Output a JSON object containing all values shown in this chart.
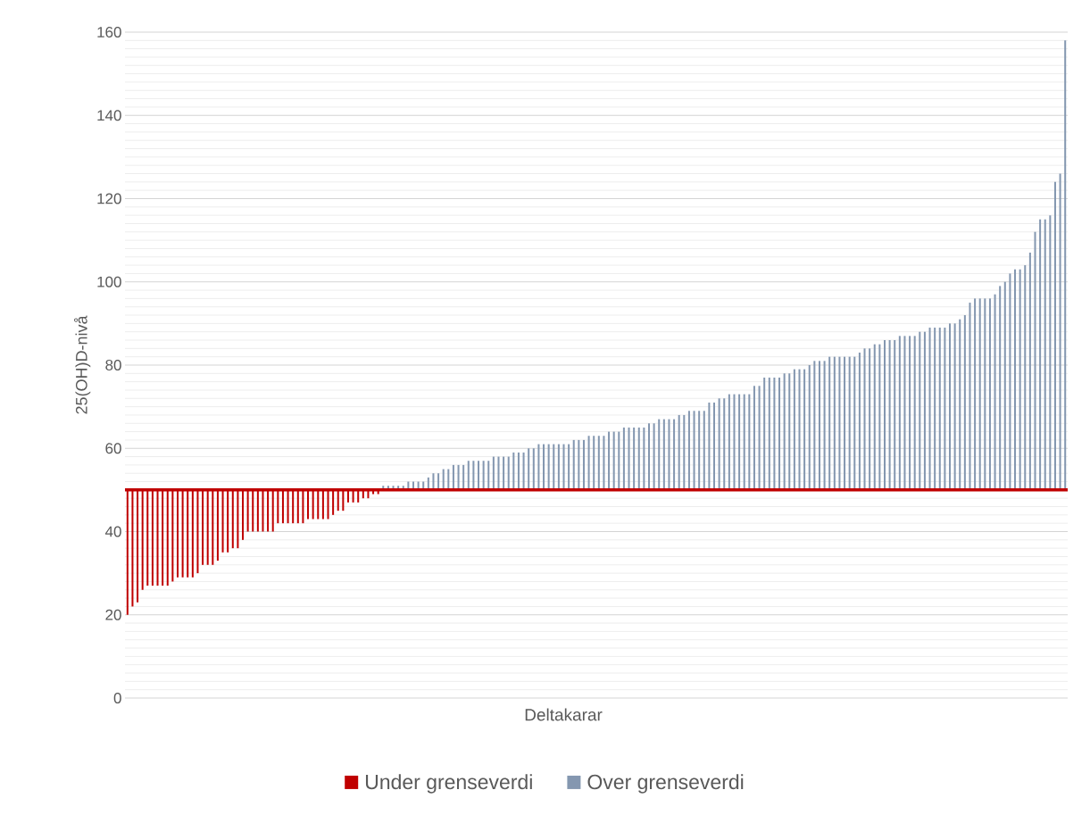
{
  "chart_data": {
    "type": "bar",
    "xlabel": "Deltakarar",
    "ylabel": "25(OH)D-nivå",
    "categories": [
      null,
      null,
      null,
      null,
      null,
      null,
      null,
      null,
      null,
      null,
      null,
      null,
      null,
      null,
      null,
      null,
      null,
      null,
      null,
      null,
      null,
      null,
      null,
      null,
      null,
      null,
      null,
      null,
      null,
      null,
      null,
      null,
      null,
      null,
      null,
      null,
      null,
      null,
      null,
      null,
      null,
      null,
      null,
      null,
      null,
      null,
      null,
      null,
      null,
      null,
      null,
      null,
      null,
      null,
      null,
      null,
      null,
      null,
      null,
      null,
      null,
      null,
      null,
      null,
      null,
      null,
      null,
      null,
      null,
      null,
      null,
      null,
      null,
      null,
      null,
      null,
      null,
      null,
      null,
      null,
      null,
      null,
      null,
      null,
      null,
      null,
      null,
      null,
      null,
      null,
      null,
      null,
      null,
      null,
      null,
      null,
      null,
      null,
      null,
      null,
      null,
      null,
      null,
      null,
      null,
      null,
      null,
      null,
      null,
      null,
      null,
      null,
      null,
      null,
      null,
      null,
      null,
      null,
      null,
      null,
      null,
      null,
      null,
      null,
      null,
      null,
      null,
      null,
      null,
      null,
      null,
      null,
      null,
      null,
      null,
      null,
      null,
      null,
      null,
      null,
      null,
      null,
      null,
      null,
      null,
      null,
      null,
      null,
      null,
      null,
      null,
      null,
      null,
      null,
      null,
      null,
      null,
      null,
      null,
      null,
      null,
      null,
      null,
      null,
      null,
      null,
      null,
      null,
      null,
      null,
      null,
      null,
      null,
      null,
      null,
      null,
      null,
      null,
      null,
      null,
      null,
      null,
      null,
      null,
      null,
      null,
      null,
      null
    ],
    "series": [
      {
        "name": "Under grenseverdi",
        "color": "#c00000",
        "base": [
          50,
          50,
          50,
          50,
          50,
          50,
          50,
          50,
          50,
          50,
          50,
          50,
          50,
          50,
          50,
          50,
          50,
          50,
          50,
          50,
          50,
          50,
          50,
          50,
          50,
          50,
          50,
          50,
          50,
          50,
          50,
          50,
          50,
          50,
          50,
          50,
          50,
          50,
          50,
          50,
          50,
          50,
          50,
          50,
          50,
          50,
          50,
          50,
          50,
          50,
          50,
          null,
          null,
          null,
          null,
          null,
          null,
          null,
          null,
          null,
          null,
          null,
          null,
          null,
          null,
          null,
          null,
          null,
          null,
          null,
          null,
          null,
          null,
          null,
          null,
          null,
          null,
          null,
          null,
          null,
          null,
          null,
          null,
          null,
          null,
          null,
          null,
          null,
          null,
          null,
          null,
          null,
          null,
          null,
          null,
          null,
          null,
          null,
          null,
          null,
          null,
          null,
          null,
          null,
          null,
          null,
          null,
          null,
          null,
          null,
          null,
          null,
          null,
          null,
          null,
          null,
          null,
          null,
          null,
          null,
          null,
          null,
          null,
          null,
          null,
          null,
          null,
          null,
          null,
          null,
          null,
          null,
          null,
          null,
          null,
          null,
          null,
          null,
          null,
          null,
          null,
          null,
          null,
          null,
          null,
          null,
          null,
          null,
          null,
          null,
          null,
          null,
          null,
          null,
          null,
          null,
          null,
          null,
          null,
          null,
          null,
          null,
          null,
          null,
          null,
          null,
          null,
          null,
          null,
          null,
          null,
          null,
          null,
          null,
          null,
          null,
          null,
          null,
          null,
          null,
          null,
          null,
          null,
          null,
          null,
          null,
          null,
          null
        ],
        "values": [
          -30,
          -28,
          -27,
          -24,
          -23,
          -23,
          -23,
          -23,
          -23,
          -22,
          -21,
          -21,
          -21,
          -21,
          -20,
          -18,
          -18,
          -18,
          -17,
          -15,
          -15,
          -14,
          -14,
          -12,
          -10,
          -10,
          -10,
          -10,
          -10,
          -10,
          -8,
          -8,
          -8,
          -8,
          -8,
          -8,
          -7,
          -7,
          -7,
          -7,
          -7,
          -6,
          -5,
          -5,
          -3,
          -3,
          -3,
          -2,
          -2,
          -1,
          -1,
          null,
          null,
          null,
          null,
          null,
          null,
          null,
          null,
          null,
          null,
          null,
          null,
          null,
          null,
          null,
          null,
          null,
          null,
          null,
          null,
          null,
          null,
          null,
          null,
          null,
          null,
          null,
          null,
          null,
          null,
          null,
          null,
          null,
          null,
          null,
          null,
          null,
          null,
          null,
          null,
          null,
          null,
          null,
          null,
          null,
          null,
          null,
          null,
          null,
          null,
          null,
          null,
          null,
          null,
          null,
          null,
          null,
          null,
          null,
          null,
          null,
          null,
          null,
          null,
          null,
          null,
          null,
          null,
          null,
          null,
          null,
          null,
          null,
          null,
          null,
          null,
          null,
          null,
          null,
          null,
          null,
          null,
          null,
          null,
          null,
          null,
          null,
          null,
          null,
          null,
          null,
          null,
          null,
          null,
          null,
          null,
          null,
          null,
          null,
          null,
          null,
          null,
          null,
          null,
          null,
          null,
          null,
          null,
          null,
          null,
          null,
          null,
          null,
          null,
          null,
          null,
          null,
          null,
          null,
          null,
          null,
          null,
          null,
          null,
          null,
          null,
          null,
          null,
          null,
          null,
          null,
          null,
          null,
          null,
          null,
          null,
          null
        ]
      },
      {
        "name": "Over grenseverdi",
        "color": "#8497b0",
        "base": [
          null,
          null,
          null,
          null,
          null,
          null,
          null,
          null,
          null,
          null,
          null,
          null,
          null,
          null,
          null,
          null,
          null,
          null,
          null,
          null,
          null,
          null,
          null,
          null,
          null,
          null,
          null,
          null,
          null,
          null,
          null,
          null,
          null,
          null,
          null,
          null,
          null,
          null,
          null,
          null,
          null,
          null,
          null,
          null,
          null,
          null,
          null,
          null,
          null,
          null,
          null,
          50,
          50,
          50,
          50,
          50,
          50,
          50,
          50,
          50,
          50,
          50,
          50,
          50,
          50,
          50,
          50,
          50,
          50,
          50,
          50,
          50,
          50,
          50,
          50,
          50,
          50,
          50,
          50,
          50,
          50,
          50,
          50,
          50,
          50,
          50,
          50,
          50,
          50,
          50,
          50,
          50,
          50,
          50,
          50,
          50,
          50,
          50,
          50,
          50,
          50,
          50,
          50,
          50,
          50,
          50,
          50,
          50,
          50,
          50,
          50,
          50,
          50,
          50,
          50,
          50,
          50,
          50,
          50,
          50,
          50,
          50,
          50,
          50,
          50,
          50,
          50,
          50,
          50,
          50,
          50,
          50,
          50,
          50,
          50,
          50,
          50,
          50,
          50,
          50,
          50,
          50,
          50,
          50,
          50,
          50,
          50,
          50,
          50,
          50,
          50,
          50,
          50,
          50,
          50,
          50,
          50,
          50,
          50,
          50,
          50,
          50,
          50,
          50,
          50,
          50,
          50,
          50,
          50,
          50,
          50,
          50,
          50,
          50,
          50,
          50,
          50,
          50,
          50,
          50,
          50,
          50,
          50,
          50,
          50,
          50,
          50,
          50
        ],
        "values": [
          null,
          null,
          null,
          null,
          null,
          null,
          null,
          null,
          null,
          null,
          null,
          null,
          null,
          null,
          null,
          null,
          null,
          null,
          null,
          null,
          null,
          null,
          null,
          null,
          null,
          null,
          null,
          null,
          null,
          null,
          null,
          null,
          null,
          null,
          null,
          null,
          null,
          null,
          null,
          null,
          null,
          null,
          null,
          null,
          null,
          null,
          null,
          null,
          null,
          null,
          null,
          1,
          1,
          1,
          1,
          1,
          2,
          2,
          2,
          2,
          3,
          4,
          4,
          5,
          5,
          6,
          6,
          6,
          7,
          7,
          7,
          7,
          7,
          8,
          8,
          8,
          8,
          9,
          9,
          9,
          10,
          10,
          11,
          11,
          11,
          11,
          11,
          11,
          11,
          12,
          12,
          12,
          13,
          13,
          13,
          13,
          14,
          14,
          14,
          15,
          15,
          15,
          15,
          15,
          16,
          16,
          17,
          17,
          17,
          17,
          18,
          18,
          19,
          19,
          19,
          19,
          21,
          21,
          22,
          22,
          23,
          23,
          23,
          23,
          23,
          25,
          25,
          27,
          27,
          27,
          27,
          28,
          28,
          29,
          29,
          29,
          30,
          31,
          31,
          31,
          32,
          32,
          32,
          32,
          32,
          32,
          33,
          34,
          34,
          35,
          35,
          36,
          36,
          36,
          37,
          37,
          37,
          37,
          38,
          38,
          39,
          39,
          39,
          39,
          40,
          40,
          41,
          42,
          45,
          46,
          46,
          46,
          46,
          47,
          49,
          50,
          52,
          53,
          53,
          54,
          57,
          62,
          65,
          65,
          66,
          74,
          76,
          108
        ]
      }
    ],
    "ref_lines": [
      {
        "axis": "y",
        "value": 50,
        "color": "#c00000"
      }
    ],
    "ylim": [
      0,
      160
    ],
    "yticks": [
      0,
      {
        "value": 2,
        "label": null
      },
      {
        "value": 4,
        "label": null
      },
      {
        "value": 6,
        "label": null
      },
      {
        "value": 8,
        "label": null
      },
      {
        "value": 10,
        "label": null
      },
      {
        "value": 12,
        "label": null
      },
      {
        "value": 14,
        "label": null
      },
      {
        "value": 16,
        "label": null
      },
      {
        "value": 18,
        "label": null
      },
      20,
      {
        "value": 22,
        "label": null
      },
      {
        "value": 24,
        "label": null
      },
      {
        "value": 26,
        "label": null
      },
      {
        "value": 28,
        "label": null
      },
      {
        "value": 30,
        "label": null
      },
      {
        "value": 32,
        "label": null
      },
      {
        "value": 34,
        "label": null
      },
      {
        "value": 36,
        "label": null
      },
      {
        "value": 38,
        "label": null
      },
      40,
      {
        "value": 42,
        "label": null
      },
      {
        "value": 44,
        "label": null
      },
      {
        "value": 46,
        "label": null
      },
      {
        "value": 48,
        "label": null
      },
      {
        "value": 50,
        "label": null
      },
      {
        "value": 52,
        "label": null
      },
      {
        "value": 54,
        "label": null
      },
      {
        "value": 56,
        "label": null
      },
      {
        "value": 58,
        "label": null
      },
      60,
      {
        "value": 62,
        "label": null
      },
      {
        "value": 64,
        "label": null
      },
      {
        "value": 66,
        "label": null
      },
      {
        "value": 68,
        "label": null
      },
      {
        "value": 70,
        "label": null
      },
      {
        "value": 72,
        "label": null
      },
      {
        "value": 74,
        "label": null
      },
      {
        "value": 76,
        "label": null
      },
      {
        "value": 78,
        "label": null
      },
      80,
      {
        "value": 82,
        "label": null
      },
      {
        "value": 84,
        "label": null
      },
      {
        "value": 86,
        "label": null
      },
      {
        "value": 88,
        "label": null
      },
      {
        "value": 90,
        "label": null
      },
      {
        "value": 92,
        "label": null
      },
      {
        "value": 94,
        "label": null
      },
      {
        "value": 96,
        "label": null
      },
      {
        "value": 98,
        "label": null
      },
      100,
      {
        "value": 102,
        "label": null
      },
      {
        "value": 104,
        "label": null
      },
      {
        "value": 106,
        "label": null
      },
      {
        "value": 108,
        "label": null
      },
      {
        "value": 110,
        "label": null
      },
      {
        "value": 112,
        "label": null
      },
      {
        "value": 114,
        "label": null
      },
      {
        "value": 116,
        "label": null
      },
      {
        "value": 118,
        "label": null
      },
      120,
      {
        "value": 122,
        "label": null
      },
      {
        "value": 124,
        "label": null
      },
      {
        "value": 126,
        "label": null
      },
      {
        "value": 128,
        "label": null
      },
      {
        "value": 130,
        "label": null
      },
      {
        "value": 132,
        "label": null
      },
      {
        "value": 134,
        "label": null
      },
      {
        "value": 136,
        "label": null
      },
      {
        "value": 138,
        "label": null
      },
      140,
      {
        "value": 142,
        "label": null
      },
      {
        "value": 144,
        "label": null
      },
      {
        "value": 146,
        "label": null
      },
      {
        "value": 148,
        "label": null
      },
      {
        "value": 150,
        "label": null
      },
      {
        "value": 152,
        "label": null
      },
      {
        "value": 154,
        "label": null
      },
      {
        "value": 156,
        "label": null
      },
      {
        "value": 158,
        "label": null
      },
      160
    ],
    "grid": true,
    "legend": "bottom"
  }
}
